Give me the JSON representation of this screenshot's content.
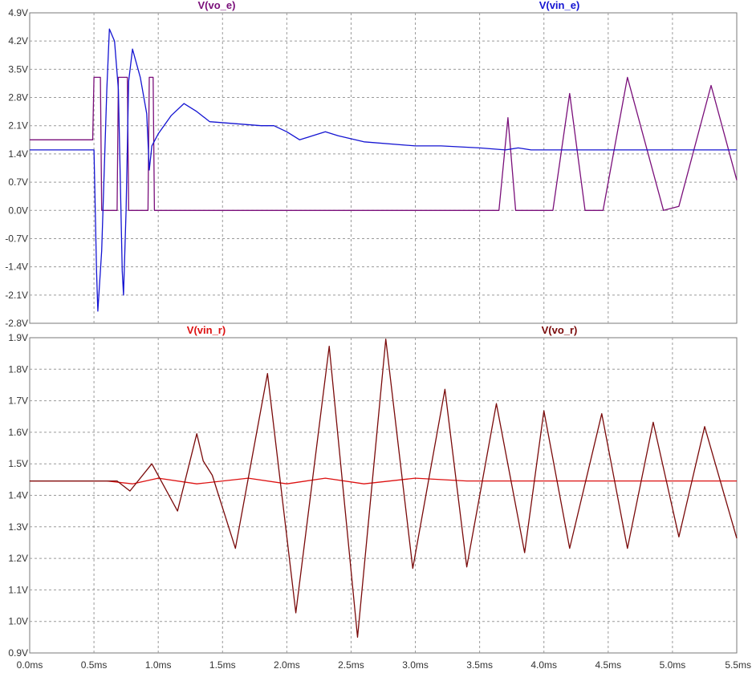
{
  "chart_data": [
    {
      "type": "line",
      "title": "",
      "xlabel": "",
      "ylabel": "",
      "xlim": [
        0.0,
        5.5
      ],
      "ylim": [
        -2.8,
        4.9
      ],
      "grid": true,
      "legend": "top",
      "x_ticks": [
        "0.0ms",
        "0.5ms",
        "1.0ms",
        "1.5ms",
        "2.0ms",
        "2.5ms",
        "3.0ms",
        "3.5ms",
        "4.0ms",
        "4.5ms",
        "5.0ms",
        "5.5ms"
      ],
      "y_ticks": [
        "4.9V",
        "4.2V",
        "3.5V",
        "2.8V",
        "2.1V",
        "1.4V",
        "0.7V",
        "0.0V",
        "-0.7V",
        "-1.4V",
        "-2.1V",
        "-2.8V"
      ],
      "series": [
        {
          "name": "V(vo_e)",
          "color": "#7a0f7a",
          "points": [
            [
              0.0,
              1.75
            ],
            [
              0.49,
              1.75
            ],
            [
              0.5,
              3.3
            ],
            [
              0.55,
              3.3
            ],
            [
              0.56,
              0.0
            ],
            [
              0.68,
              0.0
            ],
            [
              0.69,
              3.3
            ],
            [
              0.76,
              3.3
            ],
            [
              0.77,
              0.0
            ],
            [
              0.92,
              0.0
            ],
            [
              0.93,
              3.3
            ],
            [
              0.96,
              3.3
            ],
            [
              0.97,
              0.0
            ],
            [
              3.65,
              0.0
            ],
            [
              3.72,
              2.3
            ],
            [
              3.78,
              0.0
            ],
            [
              4.07,
              0.0
            ],
            [
              4.2,
              2.9
            ],
            [
              4.32,
              0.0
            ],
            [
              4.46,
              0.0
            ],
            [
              4.65,
              3.3
            ],
            [
              4.93,
              0.0
            ],
            [
              5.05,
              0.1
            ],
            [
              5.3,
              3.1
            ],
            [
              5.5,
              0.75
            ]
          ]
        },
        {
          "name": "V(vin_e)",
          "color": "#1414d2",
          "points": [
            [
              0.0,
              1.5
            ],
            [
              0.5,
              1.5
            ],
            [
              0.52,
              -1.5
            ],
            [
              0.53,
              -2.5
            ],
            [
              0.56,
              -1.0
            ],
            [
              0.6,
              3.0
            ],
            [
              0.62,
              4.5
            ],
            [
              0.66,
              4.2
            ],
            [
              0.69,
              3.0
            ],
            [
              0.72,
              -1.5
            ],
            [
              0.73,
              -2.1
            ],
            [
              0.75,
              0.0
            ],
            [
              0.77,
              3.2
            ],
            [
              0.8,
              4.0
            ],
            [
              0.86,
              3.3
            ],
            [
              0.91,
              2.4
            ],
            [
              0.93,
              1.0
            ],
            [
              0.95,
              1.6
            ],
            [
              1.0,
              1.9
            ],
            [
              1.1,
              2.35
            ],
            [
              1.2,
              2.65
            ],
            [
              1.3,
              2.45
            ],
            [
              1.4,
              2.2
            ],
            [
              1.6,
              2.15
            ],
            [
              1.8,
              2.1
            ],
            [
              1.9,
              2.1
            ],
            [
              2.0,
              1.95
            ],
            [
              2.1,
              1.75
            ],
            [
              2.2,
              1.85
            ],
            [
              2.3,
              1.95
            ],
            [
              2.4,
              1.85
            ],
            [
              2.6,
              1.7
            ],
            [
              3.0,
              1.6
            ],
            [
              3.2,
              1.6
            ],
            [
              3.5,
              1.55
            ],
            [
              3.7,
              1.5
            ],
            [
              3.8,
              1.55
            ],
            [
              3.9,
              1.5
            ],
            [
              4.1,
              1.5
            ],
            [
              5.5,
              1.5
            ]
          ]
        }
      ]
    },
    {
      "type": "line",
      "title": "",
      "xlabel": "",
      "ylabel": "",
      "xlim": [
        0.0,
        5.5
      ],
      "ylim": [
        0.9,
        2.0
      ],
      "grid": true,
      "legend": "top",
      "x_ticks": [
        "0.0ms",
        "0.5ms",
        "1.0ms",
        "1.5ms",
        "2.0ms",
        "2.5ms",
        "3.0ms",
        "3.5ms",
        "4.0ms",
        "4.5ms",
        "5.0ms",
        "5.5ms"
      ],
      "y_ticks": [
        "1.9V",
        "1.8V",
        "1.7V",
        "1.6V",
        "1.5V",
        "1.4V",
        "1.3V",
        "1.2V",
        "1.1V",
        "1.0V",
        "0.9V"
      ],
      "series": [
        {
          "name": "V(vin_r)",
          "color": "#dd1111",
          "points": [
            [
              0.0,
              1.5
            ],
            [
              0.6,
              1.5
            ],
            [
              0.8,
              1.49
            ],
            [
              1.0,
              1.51
            ],
            [
              1.3,
              1.49
            ],
            [
              1.7,
              1.51
            ],
            [
              2.0,
              1.49
            ],
            [
              2.3,
              1.51
            ],
            [
              2.6,
              1.49
            ],
            [
              3.0,
              1.51
            ],
            [
              3.4,
              1.5
            ],
            [
              4.0,
              1.5
            ],
            [
              5.5,
              1.5
            ]
          ]
        },
        {
          "name": "V(vo_r)",
          "color": "#7a0a0a",
          "points": [
            [
              0.0,
              1.5
            ],
            [
              0.68,
              1.5
            ],
            [
              0.78,
              1.465
            ],
            [
              0.95,
              1.56
            ],
            [
              1.15,
              1.395
            ],
            [
              1.3,
              1.665
            ],
            [
              1.35,
              1.57
            ],
            [
              1.42,
              1.52
            ],
            [
              1.6,
              1.265
            ],
            [
              1.85,
              1.875
            ],
            [
              2.07,
              1.04
            ],
            [
              2.33,
              1.97
            ],
            [
              2.55,
              0.955
            ],
            [
              2.77,
              1.995
            ],
            [
              2.98,
              1.195
            ],
            [
              3.23,
              1.82
            ],
            [
              3.4,
              1.2
            ],
            [
              3.63,
              1.77
            ],
            [
              3.85,
              1.25
            ],
            [
              4.0,
              1.745
            ],
            [
              4.2,
              1.265
            ],
            [
              4.45,
              1.735
            ],
            [
              4.65,
              1.265
            ],
            [
              4.85,
              1.705
            ],
            [
              5.05,
              1.305
            ],
            [
              5.25,
              1.69
            ],
            [
              5.5,
              1.3
            ]
          ]
        }
      ]
    }
  ]
}
